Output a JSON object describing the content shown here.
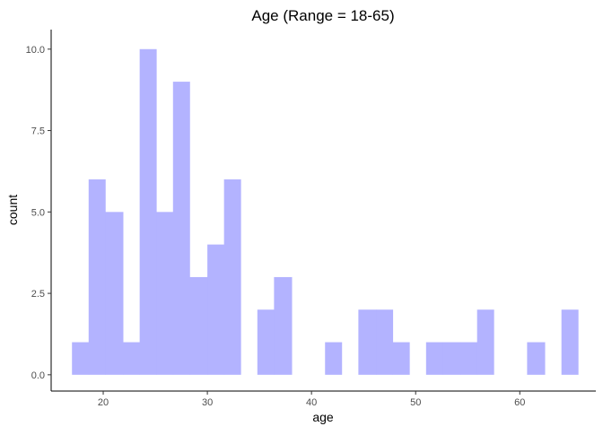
{
  "chart_data": {
    "type": "bar",
    "title": "Age (Range = 18-65)",
    "xlabel": "age",
    "ylabel": "count",
    "xlim": [
      15,
      67.3
    ],
    "ylim": [
      -0.5,
      10.6
    ],
    "x_ticks": [
      20,
      30,
      40,
      50,
      60
    ],
    "x_tick_labels": [
      "20",
      "30",
      "40",
      "50",
      "60"
    ],
    "y_ticks": [
      0,
      2.5,
      5,
      7.5,
      10
    ],
    "y_tick_labels": [
      "0.0",
      "2.5",
      "5.0",
      "7.5",
      "10.0"
    ],
    "grid": false,
    "legend": "none",
    "bar_color": "#b3b3ff",
    "bins": [
      {
        "x0": 17.0,
        "x1": 18.6,
        "count": 1
      },
      {
        "x0": 18.6,
        "x1": 20.2,
        "count": 6
      },
      {
        "x0": 20.2,
        "x1": 21.9,
        "count": 5
      },
      {
        "x0": 21.9,
        "x1": 23.5,
        "count": 1
      },
      {
        "x0": 23.5,
        "x1": 25.1,
        "count": 10
      },
      {
        "x0": 25.1,
        "x1": 26.7,
        "count": 5
      },
      {
        "x0": 26.7,
        "x1": 28.3,
        "count": 9
      },
      {
        "x0": 28.3,
        "x1": 30.0,
        "count": 3
      },
      {
        "x0": 30.0,
        "x1": 31.6,
        "count": 4
      },
      {
        "x0": 31.6,
        "x1": 33.2,
        "count": 6
      },
      {
        "x0": 33.2,
        "x1": 34.8,
        "count": 0
      },
      {
        "x0": 34.8,
        "x1": 36.4,
        "count": 2
      },
      {
        "x0": 36.4,
        "x1": 38.1,
        "count": 3
      },
      {
        "x0": 38.1,
        "x1": 39.7,
        "count": 0
      },
      {
        "x0": 39.7,
        "x1": 41.3,
        "count": 0
      },
      {
        "x0": 41.3,
        "x1": 42.9,
        "count": 1
      },
      {
        "x0": 42.9,
        "x1": 44.5,
        "count": 0
      },
      {
        "x0": 44.5,
        "x1": 46.2,
        "count": 2
      },
      {
        "x0": 46.2,
        "x1": 47.8,
        "count": 2
      },
      {
        "x0": 47.8,
        "x1": 49.4,
        "count": 1
      },
      {
        "x0": 49.4,
        "x1": 51.0,
        "count": 0
      },
      {
        "x0": 51.0,
        "x1": 52.6,
        "count": 1
      },
      {
        "x0": 52.6,
        "x1": 54.3,
        "count": 1
      },
      {
        "x0": 54.3,
        "x1": 55.9,
        "count": 1
      },
      {
        "x0": 55.9,
        "x1": 57.5,
        "count": 2
      },
      {
        "x0": 57.5,
        "x1": 59.1,
        "count": 0
      },
      {
        "x0": 59.1,
        "x1": 60.7,
        "count": 0
      },
      {
        "x0": 60.7,
        "x1": 62.4,
        "count": 1
      },
      {
        "x0": 62.4,
        "x1": 64.0,
        "count": 0
      },
      {
        "x0": 64.0,
        "x1": 65.6,
        "count": 2
      }
    ]
  }
}
